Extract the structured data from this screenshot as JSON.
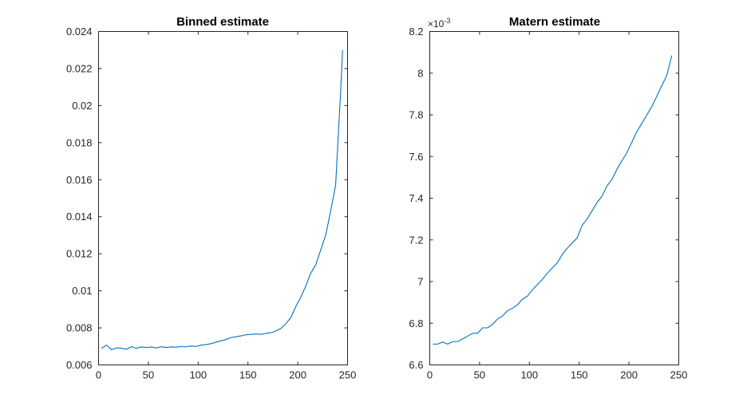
{
  "colors": {
    "series": "#0072BD",
    "axes": "#262626"
  },
  "chart_data": [
    {
      "type": "line",
      "title": "Binned estimate",
      "xlabel": "",
      "ylabel": "",
      "xlim": [
        0,
        250
      ],
      "ylim": [
        0.006,
        0.024
      ],
      "xticks": [
        0,
        50,
        100,
        150,
        200,
        250
      ],
      "xtick_labels": [
        "0",
        "50",
        "100",
        "150",
        "200",
        "250"
      ],
      "yticks": [
        0.006,
        0.008,
        0.01,
        0.012,
        0.014,
        0.016,
        0.018,
        0.02,
        0.022,
        0.024
      ],
      "ytick_labels": [
        "0.006",
        "0.008",
        "0.01",
        "0.012",
        "0.014",
        "0.016",
        "0.018",
        "0.02",
        "0.022",
        "0.024"
      ],
      "exponent_label": "",
      "grid": false,
      "series": [
        {
          "x": [
            3,
            8,
            13,
            18,
            23,
            28,
            33,
            38,
            43,
            48,
            53,
            58,
            63,
            68,
            73,
            78,
            83,
            88,
            93,
            98,
            103,
            108,
            113,
            118,
            123,
            128,
            133,
            138,
            143,
            148,
            153,
            158,
            163,
            168,
            173,
            178,
            183,
            188,
            193,
            198,
            203,
            208,
            213,
            218,
            223,
            228,
            233,
            238,
            243,
            245
          ],
          "y": [
            0.0069,
            0.00707,
            0.00682,
            0.00692,
            0.0069,
            0.00685,
            0.00698,
            0.0069,
            0.00697,
            0.00694,
            0.00697,
            0.00692,
            0.00698,
            0.00694,
            0.00697,
            0.00696,
            0.00699,
            0.00698,
            0.00702,
            0.007,
            0.00707,
            0.0071,
            0.00715,
            0.00723,
            0.0073,
            0.00737,
            0.00748,
            0.00752,
            0.00757,
            0.00763,
            0.00765,
            0.00767,
            0.00765,
            0.0077,
            0.00774,
            0.00783,
            0.00797,
            0.00823,
            0.00855,
            0.00915,
            0.00965,
            0.01025,
            0.01095,
            0.0114,
            0.0122,
            0.013,
            0.0143,
            0.0157,
            0.0207,
            0.023
          ]
        }
      ]
    },
    {
      "type": "line",
      "title": "Matern estimate",
      "xlabel": "",
      "ylabel": "",
      "xlim": [
        0,
        250
      ],
      "ylim": [
        6.6,
        8.2
      ],
      "xticks": [
        0,
        50,
        100,
        150,
        200,
        250
      ],
      "xtick_labels": [
        "0",
        "50",
        "100",
        "150",
        "200",
        "250"
      ],
      "yticks": [
        6.6,
        6.8,
        7.0,
        7.2,
        7.4,
        7.6,
        7.8,
        8.0,
        8.2
      ],
      "ytick_labels": [
        "6.6",
        "6.8",
        "7",
        "7.2",
        "7.4",
        "7.6",
        "7.8",
        "8",
        "8.2"
      ],
      "exponent_label": {
        "base": "×10",
        "power": "-3"
      },
      "grid": false,
      "series": [
        {
          "x": [
            3,
            8,
            13,
            18,
            23,
            28,
            33,
            38,
            43,
            48,
            53,
            58,
            63,
            68,
            73,
            78,
            83,
            88,
            93,
            98,
            103,
            108,
            113,
            118,
            123,
            128,
            133,
            138,
            143,
            148,
            153,
            158,
            163,
            168,
            173,
            178,
            183,
            188,
            193,
            198,
            203,
            208,
            213,
            218,
            223,
            228,
            233,
            238,
            243
          ],
          "y": [
            6.7,
            6.7,
            6.71,
            6.7,
            6.712,
            6.712,
            6.725,
            6.738,
            6.752,
            6.752,
            6.778,
            6.778,
            6.795,
            6.82,
            6.835,
            6.86,
            6.872,
            6.888,
            6.915,
            6.93,
            6.96,
            6.985,
            7.01,
            7.04,
            7.065,
            7.09,
            7.13,
            7.16,
            7.185,
            7.21,
            7.27,
            7.3,
            7.34,
            7.38,
            7.41,
            7.46,
            7.49,
            7.54,
            7.58,
            7.62,
            7.67,
            7.72,
            7.76,
            7.8,
            7.84,
            7.89,
            7.94,
            7.99,
            8.085
          ]
        }
      ]
    }
  ]
}
